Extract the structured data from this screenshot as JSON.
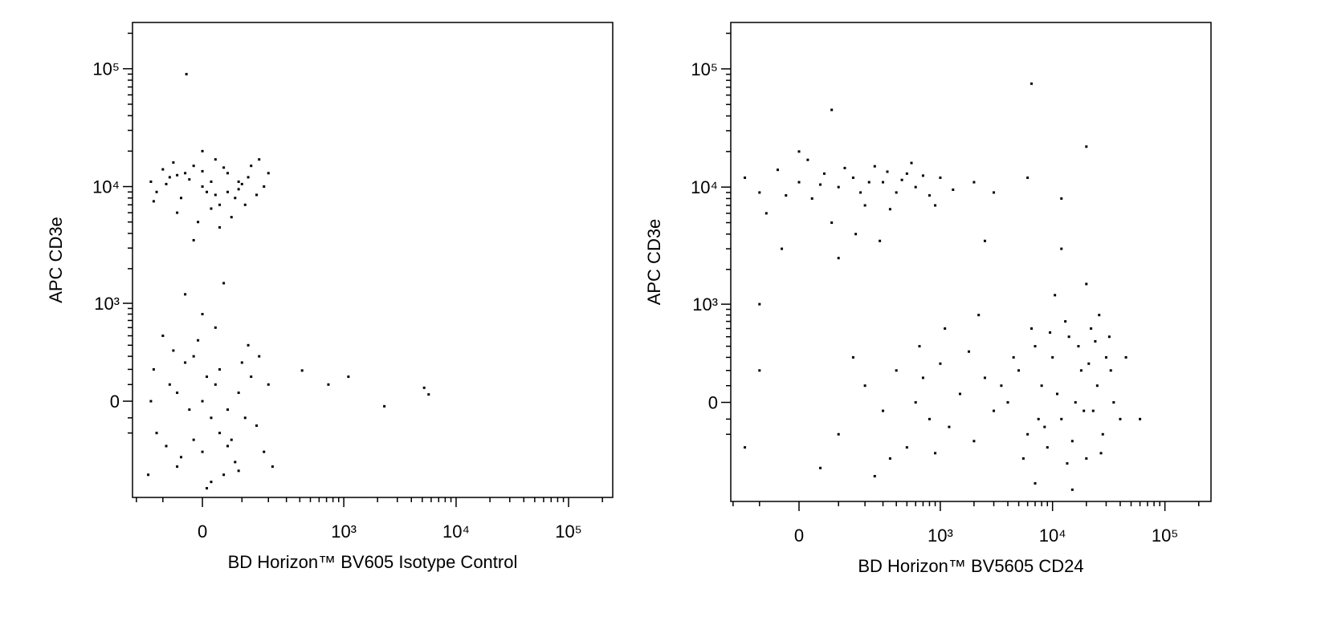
{
  "chart_data": [
    {
      "type": "scatter",
      "xlabel": "BD Horizon™ BV605 Isotype Control",
      "ylabel": "APC CD3e",
      "xscale": "biexponential",
      "yscale": "biexponential",
      "color": "#000000",
      "xlim": [
        -219,
        247000
      ],
      "ylim": [
        -967,
        247000
      ],
      "xticks": [
        0,
        {
          "value": 1000,
          "label": "10³"
        },
        {
          "value": 10000,
          "label": "10⁴"
        },
        {
          "value": 100000,
          "label": "10⁵"
        }
      ],
      "yticks": [
        0,
        {
          "value": 1000,
          "label": "10³"
        },
        {
          "value": 10000,
          "label": "10⁴"
        },
        {
          "value": 100000,
          "label": "10⁵"
        }
      ],
      "minorticks": [
        -200,
        -100,
        100,
        200,
        300,
        400,
        500,
        600,
        700,
        800,
        900,
        2000,
        3000,
        4000,
        5000,
        6000,
        7000,
        8000,
        9000,
        20000,
        30000,
        40000,
        50000,
        60000,
        70000,
        80000,
        90000,
        200000
      ],
      "x": [
        -120,
        -80,
        -50,
        -20,
        0,
        20,
        40,
        60,
        90,
        120,
        150,
        -100,
        -60,
        30,
        70,
        100,
        -30,
        10,
        50,
        -140,
        180,
        -10,
        80,
        -90,
        0,
        130,
        -40,
        60,
        20,
        -70,
        200,
        40,
        -130,
        110,
        -20,
        160,
        -60,
        90,
        0,
        30,
        -120,
        -80,
        -50,
        -20,
        0,
        20,
        40,
        60,
        90,
        120,
        150,
        -100,
        -60,
        30,
        70,
        100,
        -30,
        10,
        50,
        -140,
        180,
        -10,
        80,
        -90,
        0,
        130,
        -40,
        60,
        20,
        -70,
        200,
        40,
        -130,
        110,
        -20,
        160,
        -60,
        90,
        0,
        30,
        -150,
        220,
        -40,
        50,
        10,
        420,
        728,
        1100,
        2300,
        5200,
        5700,
        -37
      ],
      "values": [
        9000,
        12000,
        8000,
        15000,
        10000,
        11000,
        7000,
        13000,
        9500,
        12000,
        8500,
        14000,
        6000,
        17000,
        5500,
        10500,
        11500,
        9000,
        14500,
        11000,
        10000,
        5000,
        8000,
        10500,
        20000,
        15000,
        13000,
        9000,
        6500,
        16000,
        13000,
        4500,
        7500,
        7000,
        3500,
        17000,
        12500,
        11000,
        13500,
        8500,
        -200,
        100,
        -400,
        300,
        0,
        -100,
        200,
        -300,
        50,
        400,
        -150,
        500,
        -500,
        600,
        -250,
        250,
        -50,
        150,
        -600,
        0,
        -350,
        450,
        -450,
        -300,
        800,
        150,
        250,
        -50,
        -700,
        350,
        100,
        -200,
        200,
        -100,
        -250,
        300,
        50,
        -550,
        -350,
        100,
        -600,
        -500,
        1200,
        1500,
        -800,
        192,
        100,
        150,
        -30,
        80,
        40,
        90000
      ]
    },
    {
      "type": "scatter",
      "xlabel": "BD Horizon™ BV5605 CD24",
      "ylabel": "APC CD3e",
      "xscale": "biexponential",
      "yscale": "biexponential",
      "color": "#000000",
      "xlim": [
        -211,
        257000
      ],
      "ylim": [
        -1018,
        247000
      ],
      "xticks": [
        0,
        {
          "value": 1000,
          "label": "10³"
        },
        {
          "value": 10000,
          "label": "10⁴"
        },
        {
          "value": 100000,
          "label": "10⁵"
        }
      ],
      "yticks": [
        0,
        {
          "value": 1000,
          "label": "10³"
        },
        {
          "value": 10000,
          "label": "10⁴"
        },
        {
          "value": 100000,
          "label": "10⁵"
        }
      ],
      "minorticks": [
        -200,
        -100,
        100,
        200,
        300,
        400,
        500,
        600,
        700,
        800,
        900,
        2000,
        3000,
        4000,
        5000,
        6000,
        7000,
        8000,
        9000,
        20000,
        30000,
        40000,
        50000,
        60000,
        70000,
        80000,
        90000,
        200000
      ],
      "x": [
        -150,
        -100,
        -50,
        0,
        30,
        60,
        100,
        150,
        200,
        250,
        300,
        400,
        500,
        600,
        800,
        1000,
        1300,
        -80,
        20,
        80,
        120,
        180,
        350,
        450,
        700,
        900,
        50,
        -30,
        220,
        330,
        160,
        280,
        2000,
        3000,
        6000,
        12000,
        -40,
        100,
        550,
        0,
        4000,
        5000,
        6000,
        7000,
        8000,
        9000,
        10000,
        12000,
        14000,
        16000,
        18000,
        20000,
        22000,
        25000,
        28000,
        30000,
        35000,
        40000,
        5500,
        6500,
        8500,
        11000,
        13000,
        15000,
        17000,
        19000,
        21000,
        24000,
        27000,
        32000,
        4500,
        7500,
        9500,
        13500,
        23000,
        26000,
        33000,
        3500,
        45000,
        60000,
        10500,
        20000,
        7000,
        15000,
        100,
        200,
        300,
        400,
        500,
        600,
        700,
        800,
        1000,
        1200,
        1500,
        2000,
        2500,
        3000,
        150,
        350,
        650,
        900,
        1800,
        -150,
        -100,
        50,
        250,
        1100,
        2200,
        6500,
        80,
        20000,
        12000,
        -100,
        2500
      ],
      "values": [
        12000,
        9000,
        14000,
        11000,
        8000,
        13000,
        10000,
        12000,
        7000,
        15000,
        11000,
        9000,
        13000,
        10000,
        8500,
        12000,
        9500,
        6000,
        17000,
        5000,
        14500,
        9000,
        6500,
        11500,
        12500,
        7000,
        10500,
        8500,
        11000,
        13500,
        4000,
        3500,
        11000,
        9000,
        12000,
        8000,
        3000,
        2500,
        16000,
        20000,
        0,
        200,
        -200,
        400,
        100,
        -300,
        300,
        -100,
        500,
        0,
        200,
        -400,
        600,
        100,
        -200,
        300,
        0,
        -100,
        -400,
        600,
        -150,
        50,
        700,
        -250,
        400,
        -50,
        250,
        450,
        -350,
        500,
        300,
        -100,
        550,
        -450,
        -50,
        800,
        200,
        100,
        300,
        -100,
        1200,
        1500,
        -700,
        -800,
        -200,
        100,
        -50,
        200,
        -300,
        0,
        150,
        -100,
        250,
        -150,
        50,
        -250,
        150,
        -50,
        300,
        -400,
        400,
        -350,
        350,
        -300,
        200,
        -500,
        -600,
        600,
        800,
        75000,
        45000,
        22000,
        3000,
        1000,
        3500
      ]
    }
  ]
}
